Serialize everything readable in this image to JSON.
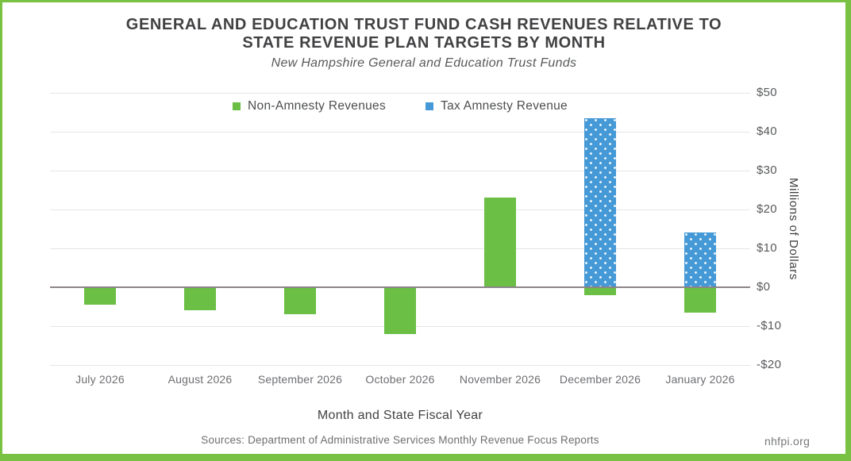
{
  "frame": {
    "border_color": "#79c143",
    "background": "#ffffff"
  },
  "header": {
    "title_line1": "GENERAL AND EDUCATION TRUST FUND CASH REVENUES RELATIVE TO",
    "title_line2": "STATE REVENUE PLAN TARGETS BY MONTH",
    "subtitle": "New Hampshire General and Education Trust Funds"
  },
  "legend": {
    "items": [
      {
        "label": "Non-Amnesty Revenues",
        "color": "#6abf44",
        "pattern": "solid"
      },
      {
        "label": "Tax Amnesty Revenue",
        "color": "#4499d6",
        "pattern": "dots"
      }
    ]
  },
  "chart_data": {
    "type": "bar",
    "title": "GENERAL AND EDUCATION TRUST FUND CASH REVENUES RELATIVE TO STATE REVENUE PLAN TARGETS BY MONTH",
    "subtitle": "New Hampshire General and Education Trust Funds",
    "categories": [
      "July 2026",
      "August 2026",
      "September 2026",
      "October 2026",
      "November 2026",
      "December 2026",
      "January 2026"
    ],
    "series": [
      {
        "name": "Non-Amnesty Revenues",
        "color": "#6abf44",
        "pattern": "solid",
        "values": [
          -4.5,
          -6,
          -7,
          -12,
          23,
          -2,
          -6.5
        ]
      },
      {
        "name": "Tax Amnesty Revenue",
        "color": "#4499d6",
        "pattern": "dots",
        "values": [
          0,
          0,
          0,
          0,
          0,
          43.5,
          14
        ]
      }
    ],
    "xlabel": "Month and State Fiscal Year",
    "ylabel": "Millions of Dollars",
    "ylim": [
      -20,
      50
    ],
    "y_tick_values": [
      50,
      40,
      30,
      20,
      10,
      0,
      -10,
      -20
    ],
    "y_ticks": [
      "$50",
      "$40",
      "$30",
      "$20",
      "$10",
      "$0",
      "-$10",
      "-$20"
    ],
    "grid": true,
    "zero_line_color": "#8b8489",
    "gridline_color": "#e7e6e6",
    "legend_position": "top-center"
  },
  "footer": {
    "sources": "Sources: Department of Administrative Services Monthly Revenue Focus Reports",
    "website": "nhfpi.org"
  }
}
